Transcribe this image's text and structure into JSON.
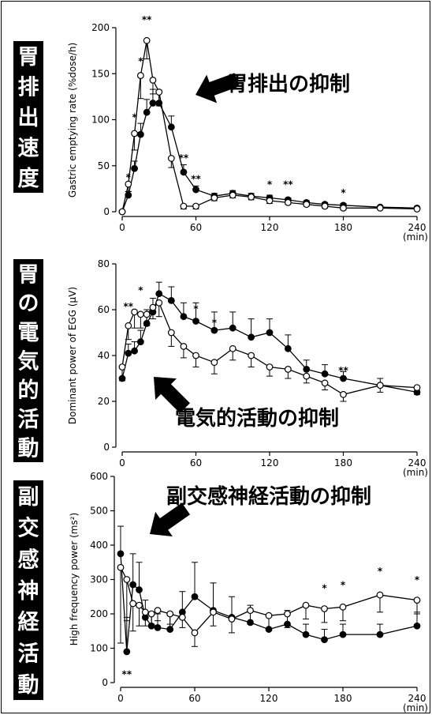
{
  "chart_data": [
    {
      "type": "line",
      "side_label": "胃排出速度",
      "annotation": "胃排出の抑制",
      "ylabel": "Gastric emptying rate (%dose/h)",
      "xunit": "(min)",
      "xticks": [
        0,
        60,
        120,
        180,
        240
      ],
      "yticks": [
        0,
        50,
        100,
        150,
        200
      ],
      "xlim": [
        0,
        240
      ],
      "ylim": [
        0,
        200
      ],
      "series": [
        {
          "marker": "filled",
          "x": [
            0,
            5,
            10,
            15,
            20,
            25,
            30,
            40,
            50,
            60,
            75,
            90,
            105,
            120,
            135,
            150,
            165,
            180,
            210,
            240
          ],
          "y": [
            0,
            18,
            47,
            84,
            108,
            118,
            118,
            92,
            43,
            24,
            17,
            20,
            17,
            15,
            13,
            10,
            8,
            7,
            5,
            4
          ],
          "err": [
            0,
            4,
            8,
            12,
            14,
            15,
            14,
            12,
            8,
            4,
            3,
            3,
            3,
            3,
            2,
            2,
            2,
            2,
            1,
            1
          ]
        },
        {
          "marker": "open",
          "x": [
            0,
            5,
            10,
            15,
            20,
            25,
            30,
            40,
            50,
            60,
            75,
            90,
            105,
            120,
            135,
            150,
            165,
            180,
            210,
            240
          ],
          "y": [
            0,
            30,
            85,
            148,
            186,
            143,
            130,
            58,
            6,
            6,
            15,
            18,
            16,
            12,
            10,
            8,
            6,
            4,
            4,
            3
          ],
          "err": [
            0,
            8,
            18,
            25,
            20,
            15,
            15,
            10,
            3,
            3,
            3,
            3,
            3,
            3,
            2,
            2,
            2,
            2,
            1,
            1
          ]
        }
      ],
      "significance": [
        {
          "x": 5,
          "y": 34,
          "text": "*"
        },
        {
          "x": 10,
          "y": 99,
          "text": "*"
        },
        {
          "x": 15,
          "y": 160,
          "text": "*"
        },
        {
          "x": 20,
          "y": 205,
          "text": "**"
        },
        {
          "x": 50,
          "y": 55,
          "text": "**"
        },
        {
          "x": 60,
          "y": 32,
          "text": "**"
        },
        {
          "x": 120,
          "y": 26,
          "text": "*"
        },
        {
          "x": 135,
          "y": 26,
          "text": "**"
        },
        {
          "x": 180,
          "y": 17,
          "text": "*"
        }
      ]
    },
    {
      "type": "line",
      "side_label": "胃の電気的活動",
      "annotation": "電気的活動の抑制",
      "ylabel": "Dominant power of EGG (µV)",
      "xunit": "(min)",
      "xticks": [
        0,
        60,
        120,
        180,
        240
      ],
      "yticks": [
        0,
        20,
        40,
        60,
        80
      ],
      "xlim": [
        0,
        240
      ],
      "ylim": [
        0,
        80
      ],
      "series": [
        {
          "marker": "filled",
          "x": [
            0,
            5,
            10,
            15,
            20,
            25,
            30,
            40,
            50,
            60,
            75,
            90,
            105,
            120,
            135,
            150,
            165,
            180,
            210,
            240
          ],
          "y": [
            30,
            41,
            42,
            46,
            54,
            59,
            67,
            64,
            57,
            55,
            51,
            52,
            48,
            50,
            43,
            34,
            32,
            30,
            27,
            24
          ],
          "err": [
            5,
            4,
            4,
            5,
            6,
            6,
            5,
            6,
            6,
            8,
            8,
            7,
            8,
            6,
            6,
            4,
            4,
            3,
            3,
            2
          ]
        },
        {
          "marker": "open",
          "x": [
            0,
            5,
            10,
            15,
            20,
            25,
            30,
            40,
            50,
            60,
            75,
            90,
            105,
            120,
            135,
            150,
            165,
            180,
            210,
            240
          ],
          "y": [
            35,
            53,
            59,
            58,
            58,
            61,
            63,
            50,
            44,
            40,
            37,
            43,
            40,
            35,
            34,
            31,
            28,
            23,
            27,
            26
          ],
          "err": [
            6,
            6,
            7,
            6,
            5,
            5,
            6,
            6,
            5,
            5,
            5,
            5,
            5,
            4,
            4,
            3,
            3,
            3,
            3,
            3
          ]
        }
      ],
      "significance": [
        {
          "x": 5,
          "y": 60,
          "text": "**"
        },
        {
          "x": 15,
          "y": 67,
          "text": "*"
        },
        {
          "x": 60,
          "y": 59,
          "text": "*"
        },
        {
          "x": 75,
          "y": 53,
          "text": "*"
        },
        {
          "x": 180,
          "y": 32,
          "text": "**"
        }
      ]
    },
    {
      "type": "line",
      "side_label": "副交感神経活動",
      "annotation": "副交感神経活動の抑制",
      "ylabel": "High frequency power (ms²)",
      "xunit": "(min)",
      "xticks": [
        0,
        60,
        120,
        180,
        240
      ],
      "yticks": [
        0,
        100,
        200,
        300,
        400,
        500,
        600
      ],
      "xlim": [
        0,
        240
      ],
      "ylim": [
        0,
        600
      ],
      "series": [
        {
          "marker": "filled",
          "x": [
            0,
            5,
            10,
            15,
            20,
            25,
            30,
            40,
            50,
            60,
            75,
            90,
            105,
            120,
            135,
            150,
            165,
            180,
            210,
            240
          ],
          "y": [
            375,
            90,
            285,
            270,
            190,
            165,
            160,
            155,
            205,
            250,
            210,
            190,
            175,
            155,
            170,
            140,
            125,
            140,
            140,
            165
          ],
          "err": [
            80,
            100,
            90,
            80,
            50,
            40,
            40,
            40,
            60,
            100,
            80,
            60,
            50,
            40,
            40,
            30,
            30,
            30,
            30,
            40
          ]
        },
        {
          "marker": "open",
          "x": [
            0,
            5,
            10,
            15,
            20,
            25,
            30,
            40,
            50,
            60,
            75,
            90,
            105,
            120,
            135,
            150,
            165,
            180,
            210,
            240
          ],
          "y": [
            335,
            300,
            230,
            225,
            205,
            200,
            210,
            200,
            190,
            145,
            205,
            185,
            210,
            195,
            200,
            225,
            215,
            220,
            255,
            240
          ],
          "err": [
            220,
            120,
            80,
            60,
            40,
            30,
            30,
            30,
            30,
            40,
            40,
            40,
            40,
            40,
            40,
            40,
            40,
            40,
            50,
            40
          ]
        }
      ],
      "significance": [
        {
          "x": 5,
          "y": 15,
          "text": "**"
        },
        {
          "x": 165,
          "y": 265,
          "text": "*"
        },
        {
          "x": 180,
          "y": 275,
          "text": "*"
        },
        {
          "x": 210,
          "y": 315,
          "text": "*"
        },
        {
          "x": 240,
          "y": 290,
          "text": "*"
        }
      ]
    }
  ]
}
